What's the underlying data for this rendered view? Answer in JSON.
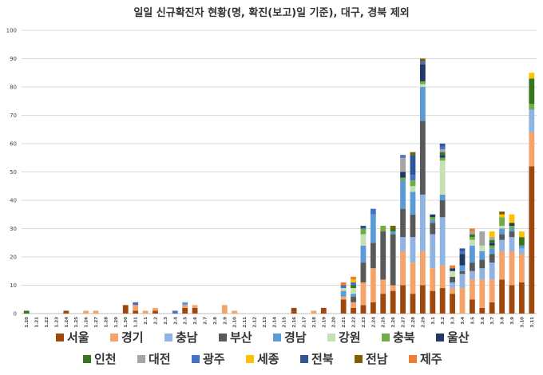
{
  "chart_data": {
    "type": "bar",
    "stacked": true,
    "title": "일일 신규확진자 현황(명, 확진(보고)일 기준), 대구, 경북 제외",
    "xlabel": "",
    "ylabel": "",
    "ylim": [
      0,
      100
    ],
    "yticks": [
      0,
      10,
      20,
      30,
      40,
      50,
      60,
      70,
      80,
      90,
      100
    ],
    "grid": true,
    "legend_position": "bottom",
    "categories": [
      "1.20",
      "1.21",
      "1.22",
      "1.23",
      "1.24",
      "1.25",
      "1.26",
      "1.27",
      "1.28",
      "1.29",
      "1.30",
      "1.31",
      "2.1",
      "2.2",
      "2.3",
      "2.4",
      "2.5",
      "2.6",
      "2.7",
      "2.8",
      "2.9",
      "2.10",
      "2.11",
      "2.12",
      "2.13",
      "2.14",
      "2.15",
      "2.16",
      "2.17",
      "2.18",
      "2.19",
      "2.20",
      "2.21",
      "2.22",
      "2.23",
      "2.24",
      "2.25",
      "2.26",
      "2.27",
      "2.28",
      "2.29",
      "3.1",
      "3.2",
      "3.3",
      "3.4",
      "3.5",
      "3.6",
      "3.7",
      "3.8",
      "3.9",
      "3.10",
      "3.11"
    ],
    "series": [
      {
        "name": "서울",
        "color": "#9e480e",
        "values": [
          0,
          0,
          0,
          0,
          1,
          0,
          0,
          0,
          0,
          0,
          3,
          1,
          0,
          1,
          0,
          0,
          2,
          2,
          0,
          0,
          0,
          0,
          0,
          0,
          0,
          0,
          0,
          2,
          0,
          0,
          2,
          0,
          5,
          2,
          3,
          4,
          7,
          8,
          10,
          7,
          10,
          8,
          9,
          7,
          0,
          5,
          2,
          4,
          12,
          10,
          11,
          52
        ]
      },
      {
        "name": "경기",
        "color": "#f4a46a",
        "values": [
          0,
          0,
          0,
          0,
          0,
          0,
          1,
          1,
          0,
          0,
          0,
          2,
          1,
          1,
          0,
          0,
          1,
          1,
          0,
          0,
          3,
          1,
          0,
          0,
          0,
          0,
          0,
          0,
          0,
          1,
          0,
          0,
          1,
          2,
          8,
          12,
          5,
          2,
          12,
          11,
          12,
          8,
          8,
          2,
          9,
          7,
          10,
          8,
          10,
          12,
          10,
          12
        ]
      },
      {
        "name": "충남",
        "color": "#8fb4e3",
        "values": [
          0,
          0,
          0,
          0,
          0,
          0,
          0,
          0,
          0,
          0,
          0,
          0,
          0,
          0,
          0,
          0,
          0,
          0,
          0,
          0,
          0,
          0,
          0,
          0,
          0,
          0,
          0,
          0,
          0,
          0,
          0,
          0,
          0,
          0,
          0,
          0,
          0,
          0,
          5,
          9,
          20,
          12,
          17,
          2,
          5,
          3,
          4,
          6,
          4,
          5,
          2,
          8
        ]
      },
      {
        "name": "부산",
        "color": "#595959",
        "values": [
          0,
          0,
          0,
          0,
          0,
          0,
          0,
          0,
          0,
          0,
          0,
          0,
          0,
          0,
          0,
          0,
          0,
          0,
          0,
          0,
          0,
          0,
          0,
          0,
          0,
          0,
          0,
          0,
          0,
          0,
          0,
          0,
          0,
          2,
          7,
          9,
          17,
          18,
          10,
          8,
          26,
          4,
          6,
          2,
          1,
          3,
          3,
          3,
          2,
          2,
          0,
          0
        ]
      },
      {
        "name": "경남",
        "color": "#5b9bd5",
        "values": [
          0,
          0,
          0,
          0,
          0,
          0,
          0,
          0,
          0,
          0,
          0,
          0,
          0,
          0,
          0,
          0,
          1,
          0,
          0,
          0,
          0,
          0,
          0,
          0,
          0,
          0,
          0,
          0,
          0,
          0,
          0,
          0,
          2,
          1,
          6,
          10,
          0,
          1,
          10,
          8,
          12,
          1,
          2,
          0,
          2,
          6,
          3,
          2,
          2,
          1,
          1,
          0
        ]
      },
      {
        "name": "강원",
        "color": "#c5e0b4",
        "values": [
          0,
          0,
          0,
          0,
          0,
          0,
          0,
          0,
          0,
          0,
          0,
          0,
          0,
          0,
          0,
          0,
          0,
          0,
          0,
          0,
          0,
          0,
          0,
          0,
          0,
          0,
          0,
          0,
          0,
          0,
          0,
          0,
          1,
          2,
          4,
          0,
          0,
          0,
          0,
          2,
          1,
          0,
          12,
          2,
          0,
          2,
          2,
          0,
          1,
          0,
          0,
          0
        ]
      },
      {
        "name": "충북",
        "color": "#70ad47",
        "values": [
          0,
          0,
          0,
          0,
          0,
          0,
          0,
          0,
          0,
          0,
          0,
          0,
          0,
          0,
          0,
          0,
          0,
          0,
          0,
          0,
          0,
          0,
          0,
          0,
          0,
          0,
          0,
          0,
          0,
          0,
          0,
          0,
          0,
          0,
          2,
          0,
          2,
          0,
          1,
          2,
          1,
          1,
          1,
          0,
          0,
          1,
          0,
          1,
          3,
          1,
          0,
          2
        ]
      },
      {
        "name": "울산",
        "color": "#203864",
        "values": [
          0,
          0,
          0,
          0,
          0,
          0,
          0,
          0,
          0,
          0,
          0,
          0,
          0,
          0,
          0,
          0,
          0,
          0,
          0,
          0,
          0,
          0,
          0,
          0,
          0,
          0,
          0,
          0,
          0,
          0,
          0,
          0,
          0,
          0,
          0,
          0,
          0,
          0,
          2,
          0,
          6,
          1,
          1,
          1,
          4,
          0,
          0,
          1,
          0,
          1,
          0,
          0
        ]
      },
      {
        "name": "인천",
        "color": "#38761d",
        "values": [
          1,
          0,
          0,
          0,
          0,
          0,
          0,
          0,
          0,
          0,
          0,
          0,
          0,
          0,
          0,
          0,
          0,
          0,
          0,
          0,
          0,
          0,
          0,
          0,
          0,
          0,
          0,
          0,
          0,
          0,
          0,
          0,
          0,
          1,
          0,
          0,
          0,
          1,
          0,
          0,
          0,
          0,
          1,
          0,
          0,
          1,
          0,
          1,
          0,
          0,
          3,
          9
        ]
      },
      {
        "name": "대전",
        "color": "#a5a5a5",
        "values": [
          0,
          0,
          0,
          0,
          0,
          0,
          0,
          0,
          0,
          0,
          0,
          0,
          0,
          0,
          0,
          0,
          0,
          0,
          0,
          0,
          0,
          0,
          0,
          0,
          0,
          0,
          0,
          0,
          0,
          0,
          0,
          0,
          0,
          0,
          0,
          0,
          0,
          0,
          5,
          0,
          0,
          0,
          1,
          0,
          0,
          1,
          5,
          1,
          0,
          0,
          0,
          0
        ]
      },
      {
        "name": "광주",
        "color": "#4472c4",
        "values": [
          0,
          0,
          0,
          0,
          0,
          0,
          0,
          0,
          0,
          0,
          0,
          1,
          0,
          0,
          0,
          1,
          0,
          0,
          0,
          0,
          0,
          0,
          0,
          0,
          0,
          0,
          0,
          0,
          0,
          0,
          0,
          0,
          1,
          1,
          0,
          2,
          0,
          0,
          1,
          2,
          1,
          0,
          1,
          0,
          1,
          0,
          0,
          0,
          0,
          0,
          0,
          0
        ]
      },
      {
        "name": "세종",
        "color": "#ffc000",
        "values": [
          0,
          0,
          0,
          0,
          0,
          0,
          0,
          0,
          0,
          0,
          0,
          0,
          0,
          0,
          0,
          0,
          0,
          0,
          0,
          0,
          0,
          0,
          0,
          0,
          0,
          0,
          0,
          0,
          0,
          0,
          0,
          0,
          0,
          1,
          0,
          0,
          0,
          0,
          0,
          0,
          0,
          0,
          0,
          0,
          0,
          0,
          0,
          2,
          1,
          3,
          2,
          2
        ]
      },
      {
        "name": "전북",
        "color": "#2f5597",
        "values": [
          0,
          0,
          0,
          0,
          0,
          0,
          0,
          0,
          0,
          0,
          0,
          0,
          0,
          0,
          0,
          0,
          0,
          0,
          0,
          0,
          0,
          0,
          0,
          0,
          0,
          0,
          0,
          0,
          0,
          0,
          0,
          0,
          0,
          0,
          1,
          0,
          0,
          0,
          0,
          7,
          0,
          0,
          1,
          0,
          1,
          0,
          0,
          0,
          0,
          0,
          0,
          0
        ]
      },
      {
        "name": "전남",
        "color": "#7f6000",
        "values": [
          0,
          0,
          0,
          0,
          0,
          0,
          0,
          0,
          0,
          0,
          0,
          0,
          0,
          0,
          0,
          0,
          0,
          0,
          0,
          0,
          0,
          0,
          0,
          0,
          0,
          0,
          0,
          0,
          0,
          0,
          0,
          0,
          0,
          0,
          0,
          0,
          0,
          1,
          0,
          1,
          1,
          0,
          0,
          0,
          0,
          0,
          0,
          0,
          1,
          0,
          0,
          0
        ]
      },
      {
        "name": "제주",
        "color": "#ed7d31",
        "values": [
          0,
          0,
          0,
          0,
          0,
          0,
          0,
          0,
          0,
          0,
          0,
          0,
          0,
          0,
          0,
          0,
          0,
          0,
          0,
          0,
          0,
          0,
          0,
          0,
          0,
          0,
          0,
          0,
          0,
          0,
          0,
          0,
          1,
          1,
          0,
          0,
          0,
          0,
          0,
          0,
          0,
          0,
          0,
          1,
          0,
          1,
          0,
          0,
          0,
          0,
          0,
          0
        ]
      }
    ]
  }
}
